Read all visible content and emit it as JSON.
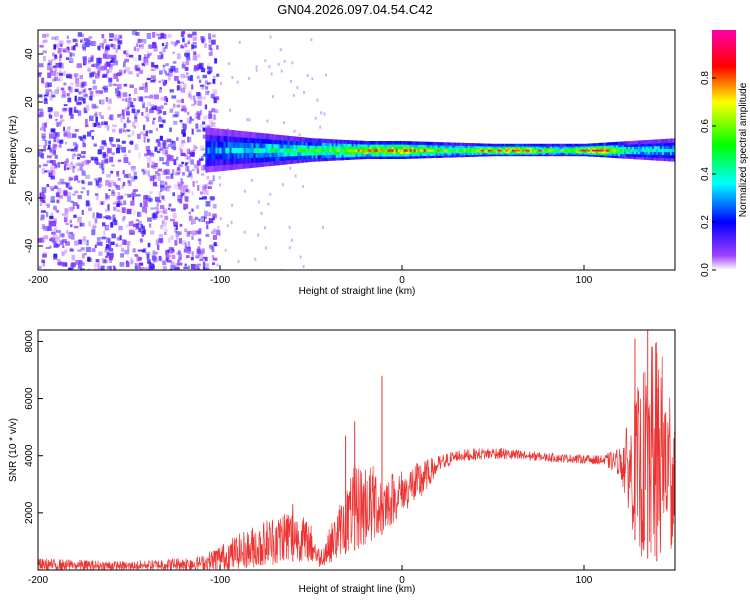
{
  "title": "GN04.2026.097.04.54.C42",
  "chart_data": [
    {
      "type": "heatmap",
      "xlabel": "Height of straight line (km)",
      "ylabel": "Frequency (Hz)",
      "xlim": [
        -200,
        150
      ],
      "ylim": [
        -50,
        50
      ],
      "x_ticks": [
        -200,
        -100,
        0,
        100
      ],
      "y_ticks": [
        -40,
        -20,
        0,
        20,
        40
      ],
      "colorbar": {
        "label": "Normalized spectral amplitude",
        "range": [
          0,
          1
        ],
        "ticks": [
          "0.0",
          "0.2",
          "0.4",
          "0.6",
          "0.8"
        ],
        "colors": [
          "#ffffff",
          "#8000ff",
          "#0000ff",
          "#00ffff",
          "#00ff00",
          "#ffff00",
          "#ff0000",
          "#ff00ff"
        ]
      },
      "noise_region_x": [
        -200,
        -102
      ],
      "signal_band": [
        {
          "x": -110,
          "halfwidth_hz": 8
        },
        {
          "x": -80,
          "halfwidth_hz": 6
        },
        {
          "x": -50,
          "halfwidth_hz": 4
        },
        {
          "x": -20,
          "halfwidth_hz": 3
        },
        {
          "x": 0,
          "halfwidth_hz": 3
        },
        {
          "x": 50,
          "halfwidth_hz": 2
        },
        {
          "x": 100,
          "halfwidth_hz": 2
        },
        {
          "x": 150,
          "halfwidth_hz": 4
        }
      ],
      "peak_amplitude": [
        {
          "x": -110,
          "value": 0.3
        },
        {
          "x": -90,
          "value": 0.35
        },
        {
          "x": -50,
          "value": 0.55
        },
        {
          "x": -20,
          "value": 0.75
        },
        {
          "x": 0,
          "value": 0.85
        },
        {
          "x": 30,
          "value": 0.6
        },
        {
          "x": 60,
          "value": 0.95
        },
        {
          "x": 85,
          "value": 0.6
        },
        {
          "x": 110,
          "value": 0.95
        },
        {
          "x": 125,
          "value": 0.45
        },
        {
          "x": 150,
          "value": 0.4
        }
      ]
    },
    {
      "type": "line",
      "xlabel": "Height of straight line (km)",
      "ylabel": "SNR (10 * v/v)",
      "xlim": [
        -200,
        150
      ],
      "ylim": [
        0,
        8400
      ],
      "x_ticks": [
        -200,
        -100,
        0,
        100
      ],
      "y_ticks": [
        2000,
        4000,
        6000,
        8000
      ],
      "color": "#ee3333",
      "envelope": [
        {
          "x": -200,
          "low": 0,
          "high": 400
        },
        {
          "x": -150,
          "low": 0,
          "high": 300
        },
        {
          "x": -110,
          "low": 0,
          "high": 500
        },
        {
          "x": -100,
          "low": 0,
          "high": 900
        },
        {
          "x": -80,
          "low": 100,
          "high": 1600
        },
        {
          "x": -60,
          "low": 300,
          "high": 2300
        },
        {
          "x": -50,
          "low": 300,
          "high": 1600
        },
        {
          "x": -45,
          "low": 100,
          "high": 700
        },
        {
          "x": -35,
          "low": 400,
          "high": 2200
        },
        {
          "x": -30,
          "low": 600,
          "high": 3000
        },
        {
          "x": -25,
          "low": 700,
          "high": 3800
        },
        {
          "x": -15,
          "low": 1000,
          "high": 3700
        },
        {
          "x": -10,
          "low": 1300,
          "high": 3400
        },
        {
          "x": 0,
          "low": 2000,
          "high": 3500
        },
        {
          "x": 10,
          "low": 2500,
          "high": 3800
        },
        {
          "x": 20,
          "low": 3400,
          "high": 4000
        },
        {
          "x": 30,
          "low": 3800,
          "high": 4200
        },
        {
          "x": 50,
          "low": 3900,
          "high": 4300
        },
        {
          "x": 80,
          "low": 3800,
          "high": 4100
        },
        {
          "x": 110,
          "low": 3700,
          "high": 4000
        },
        {
          "x": 120,
          "low": 3300,
          "high": 4300
        },
        {
          "x": 130,
          "low": 500,
          "high": 6500
        },
        {
          "x": 140,
          "low": 300,
          "high": 8400
        },
        {
          "x": 150,
          "low": 800,
          "high": 6000
        }
      ],
      "spikes": [
        {
          "x": -60,
          "value": 2300
        },
        {
          "x": -31,
          "value": 4700
        },
        {
          "x": -26,
          "value": 5200
        },
        {
          "x": -11,
          "value": 6800
        },
        {
          "x": 128,
          "value": 8100
        },
        {
          "x": 135,
          "value": 8400
        },
        {
          "x": 140,
          "value": 7600
        }
      ]
    }
  ]
}
